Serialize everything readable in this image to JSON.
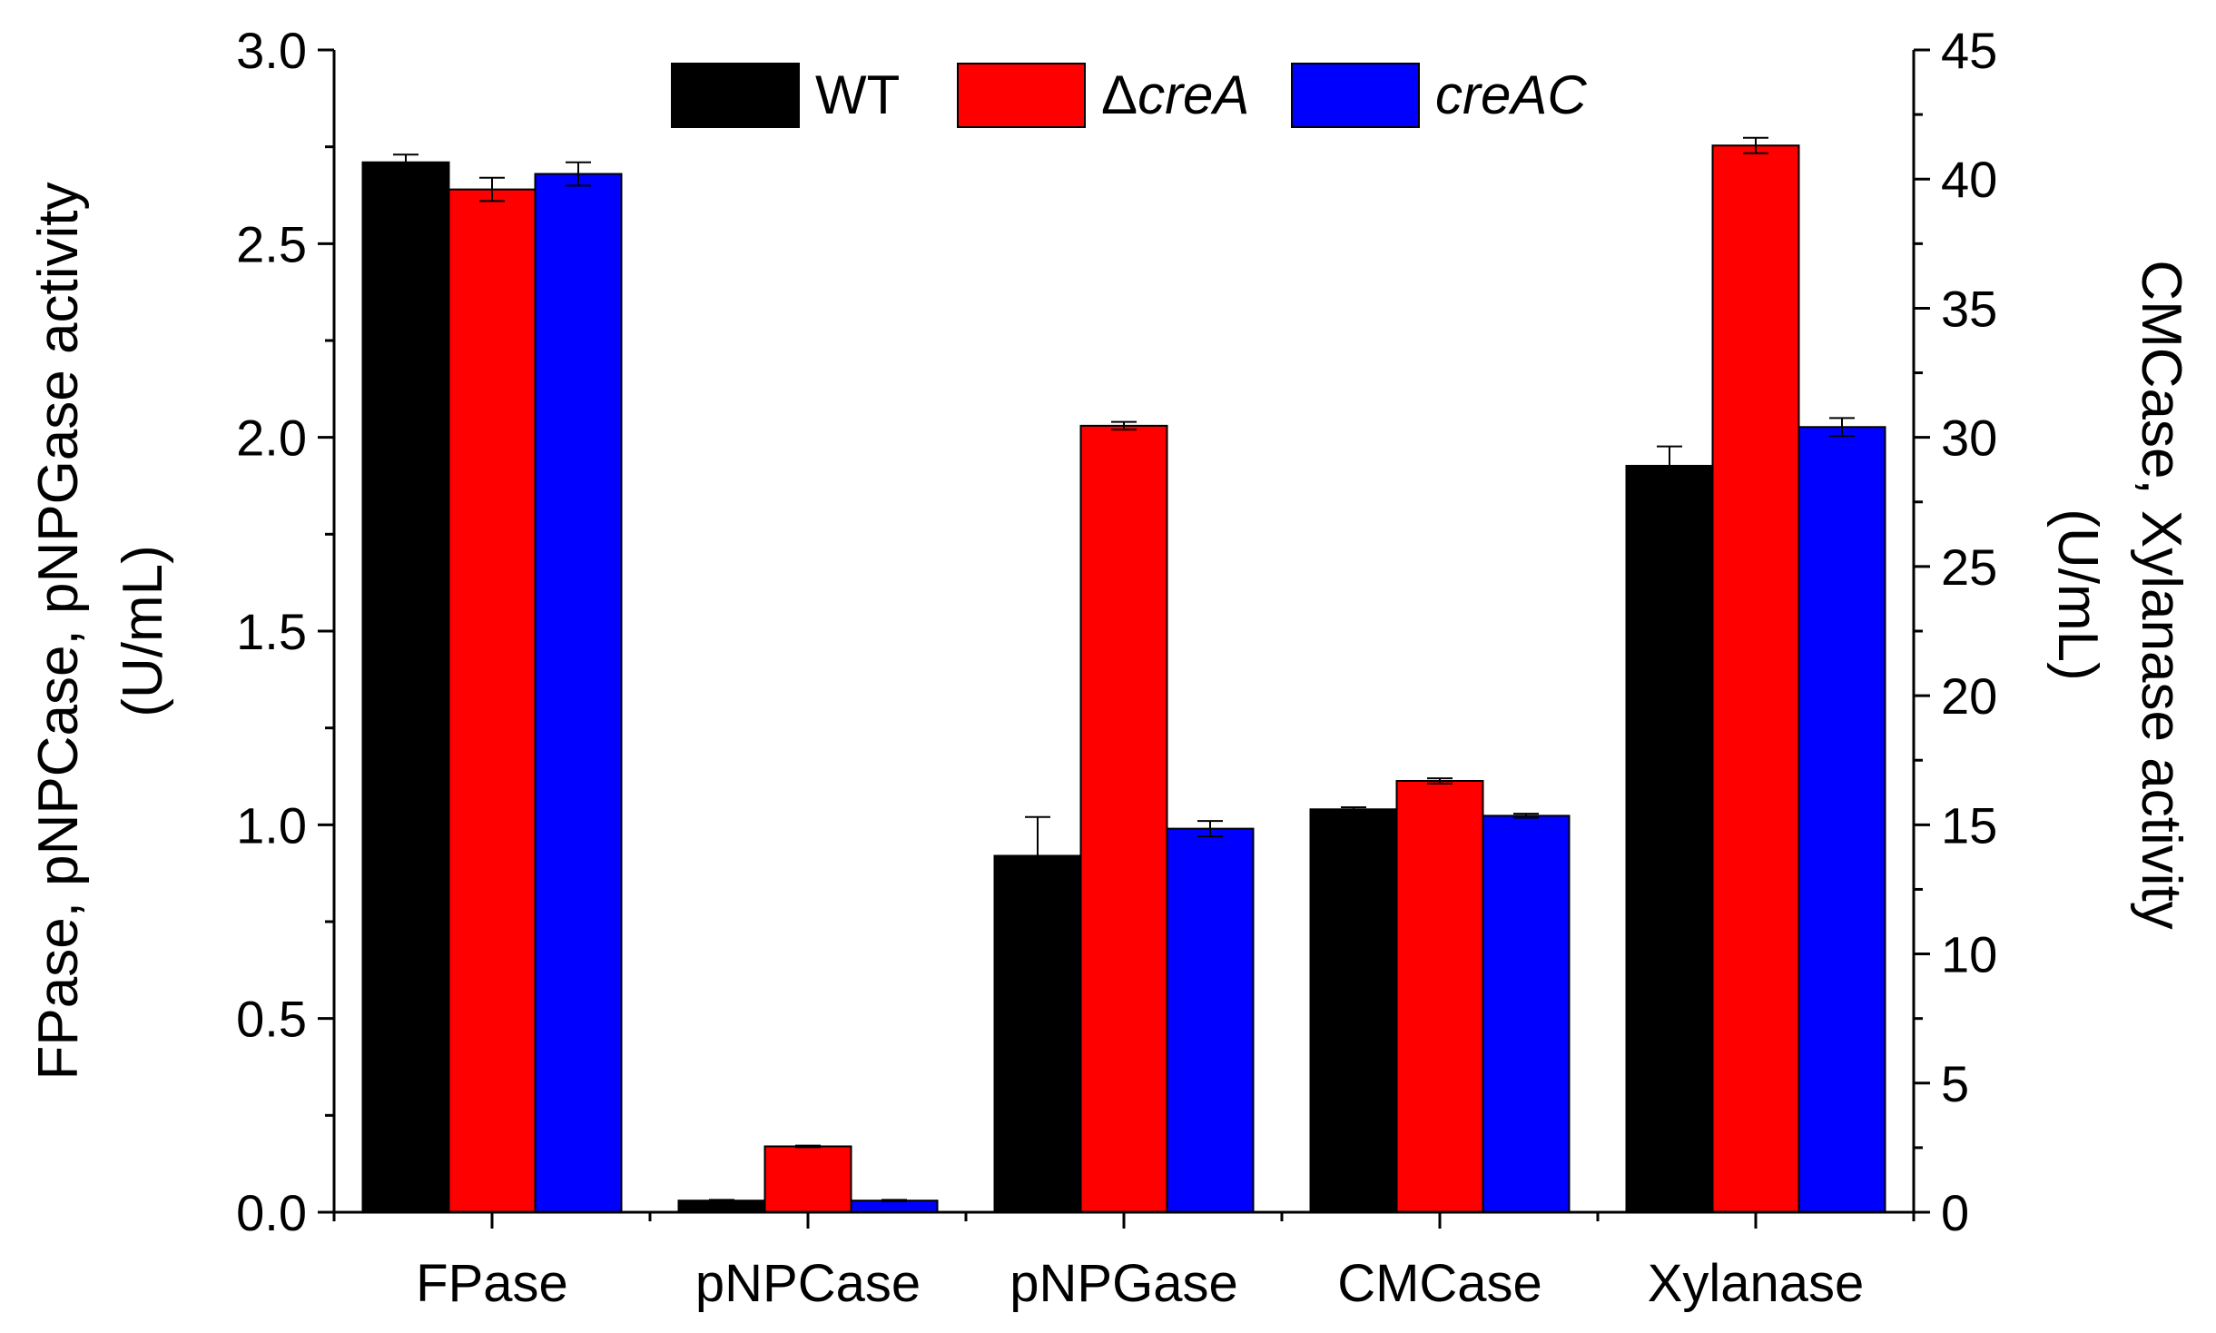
{
  "chart_data": {
    "type": "bar",
    "categories": [
      "FPase",
      "pNPCase",
      "pNPGase",
      "CMCase",
      "Xylanase"
    ],
    "series": [
      {
        "name": "WT",
        "color": "#000000",
        "values": [
          2.71,
          0.03,
          0.92,
          15.6,
          28.9
        ],
        "errors": [
          0.02,
          0.002,
          0.1,
          0.08,
          0.75
        ]
      },
      {
        "name": "ΔcreA",
        "name_prefix": "Δ",
        "name_italic": "creA",
        "color": "#ff0000",
        "values": [
          2.64,
          0.17,
          2.03,
          16.7,
          41.3
        ],
        "errors": [
          0.03,
          0.002,
          0.01,
          0.1,
          0.3
        ]
      },
      {
        "name": "creAC",
        "name_prefix": "",
        "name_italic": "creAC",
        "color": "#0000ff",
        "values": [
          2.68,
          0.03,
          0.99,
          15.35,
          30.4
        ],
        "errors": [
          0.03,
          0.002,
          0.02,
          0.08,
          0.35
        ]
      }
    ],
    "value_axis_for_category": [
      "left",
      "left",
      "left",
      "right",
      "right"
    ],
    "left_axis": {
      "label_line1": "FPase, pNPCase, pNPGase activity",
      "label_line2": "(U/mL)",
      "ylim": [
        0,
        3.0
      ],
      "ticks": [
        "0.0",
        "0.5",
        "1.0",
        "1.5",
        "2.0",
        "2.5",
        "3.0"
      ]
    },
    "right_axis": {
      "label_line1": "CMCase, Xylanase activity",
      "label_line2": "(U/mL)",
      "ylim": [
        0,
        45
      ],
      "ticks": [
        "0",
        "5",
        "10",
        "15",
        "20",
        "25",
        "30",
        "35",
        "40",
        "45"
      ]
    },
    "legend": {
      "position": "top-center",
      "entries": [
        {
          "plain": "WT",
          "italic": ""
        },
        {
          "plain": "Δ",
          "italic": "creA"
        },
        {
          "plain": "",
          "italic": "creAC"
        }
      ]
    },
    "grid": false
  }
}
